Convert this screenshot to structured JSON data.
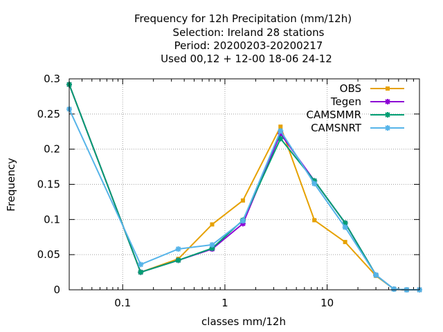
{
  "chart_data": {
    "type": "line",
    "title_lines": [
      "Frequency  for 12h Precipitation (mm/12h)",
      "Selection: Ireland      28 stations",
      "Period: 20200203-20200217",
      "Used  00,12  + 12-00 18-06 24-12"
    ],
    "xlabel": "classes mm/12h",
    "ylabel": "Frequency",
    "x_scale": "log",
    "xlim": [
      0.03,
      80
    ],
    "ylim": [
      0,
      0.3
    ],
    "x_ticks": [
      0.1,
      1,
      10
    ],
    "x_tick_labels": [
      "0.1",
      "1",
      "10"
    ],
    "y_ticks": [
      0,
      0.05,
      0.1,
      0.15,
      0.2,
      0.25,
      0.3
    ],
    "y_tick_labels": [
      "0",
      "0.05",
      "0.1",
      "0.15",
      "0.2",
      "0.25",
      "0.3"
    ],
    "grid": true,
    "legend_position": "top-right",
    "x": [
      0.03,
      0.15,
      0.35,
      0.75,
      1.5,
      3.5,
      7.5,
      15,
      30,
      45,
      60,
      80
    ],
    "series": [
      {
        "name": "OBS",
        "color": "#e6a100",
        "marker": "square",
        "values": [
          0.292,
          0.025,
          0.044,
          0.093,
          0.127,
          0.232,
          0.099,
          0.068,
          0.02,
          0.001,
          0.0,
          0.0
        ]
      },
      {
        "name": "Tegen",
        "color": "#8c00d4",
        "marker": "star",
        "values": [
          0.292,
          0.025,
          0.042,
          0.058,
          0.094,
          0.222,
          0.155,
          0.095,
          0.021,
          0.001,
          0.0,
          0.0
        ]
      },
      {
        "name": "CAMSMMR",
        "color": "#009e73",
        "marker": "star",
        "values": [
          0.292,
          0.025,
          0.042,
          0.059,
          0.099,
          0.215,
          0.155,
          0.095,
          0.021,
          0.001,
          0.0,
          0.0
        ]
      },
      {
        "name": "CAMSNRT",
        "color": "#56b4e9",
        "marker": "star",
        "values": [
          0.257,
          0.036,
          0.058,
          0.064,
          0.098,
          0.226,
          0.151,
          0.089,
          0.021,
          0.001,
          0.0,
          0.0
        ]
      }
    ]
  }
}
